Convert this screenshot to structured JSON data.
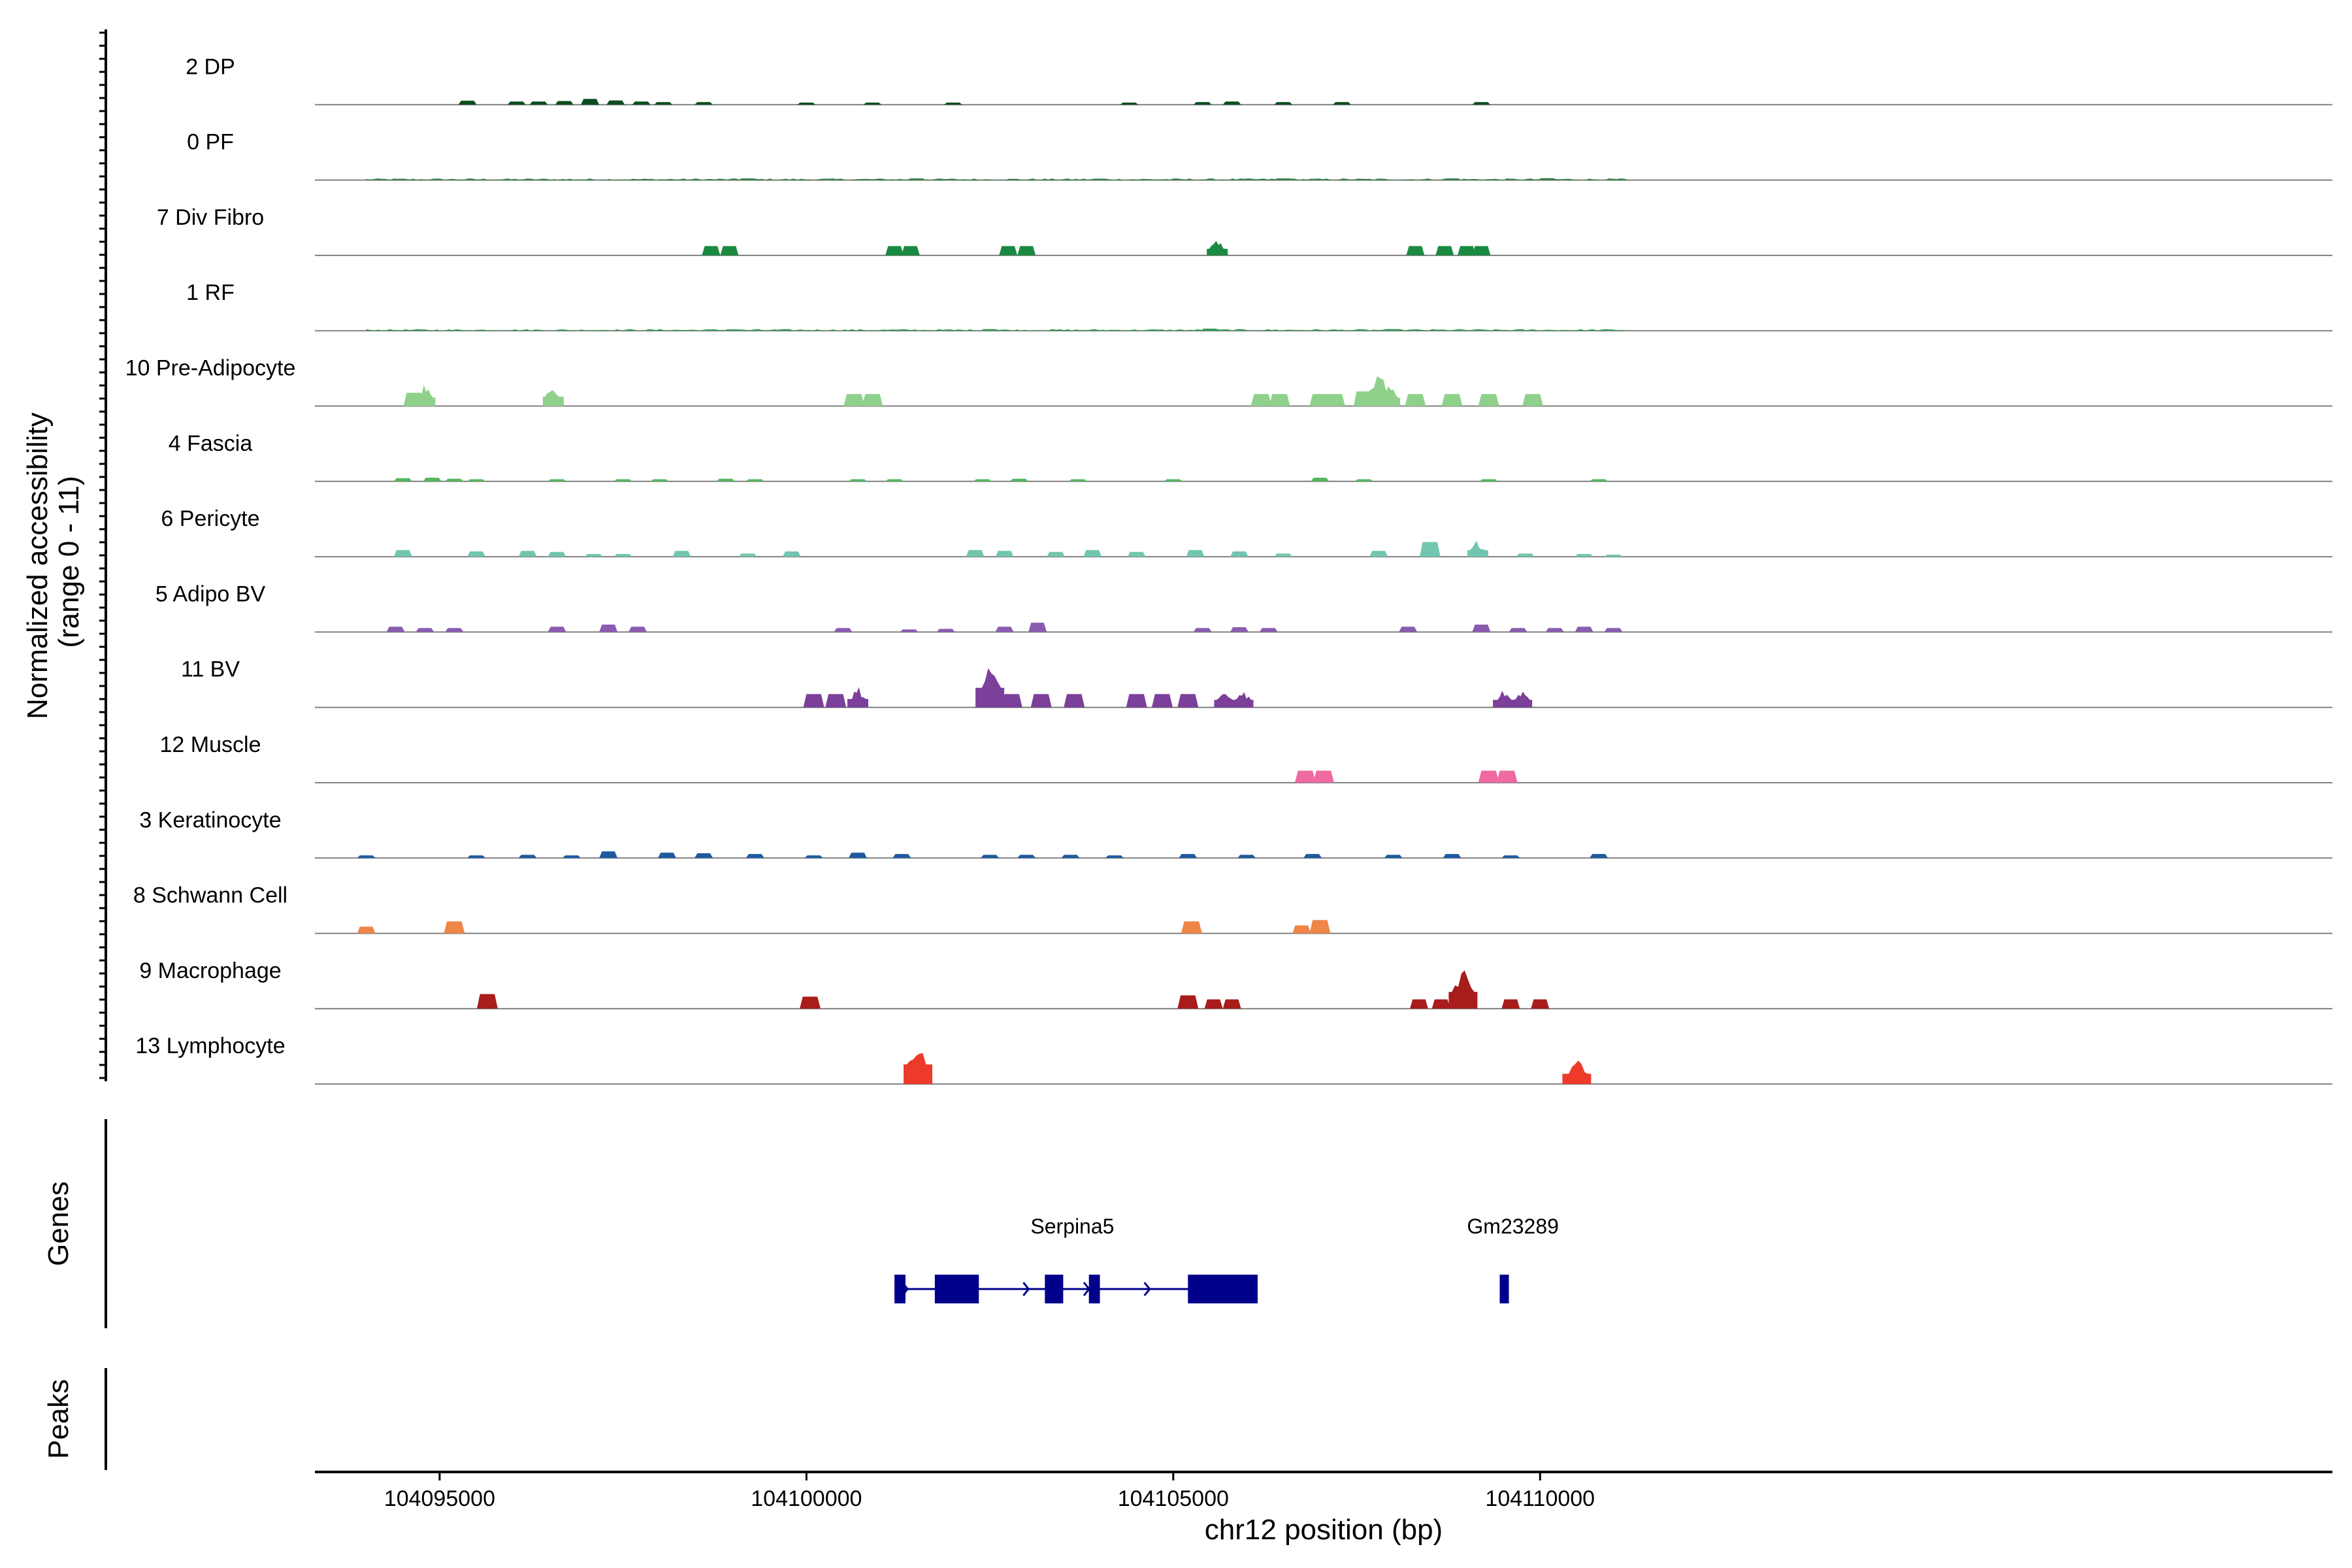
{
  "chart_data": {
    "type": "area",
    "ylabel_line1": "Normalized accessibility",
    "ylabel_line2": "(range 0 - 11)",
    "xlabel": "chr12 position (bp)",
    "xlim": [
      104093300,
      104120800
    ],
    "x_ticks": [
      104095000,
      104100000,
      104105000,
      104110000
    ],
    "x_tick_labels": [
      "104095000",
      "104100000",
      "104105000",
      "104110000"
    ],
    "y_range": [
      0,
      11
    ],
    "tracks": [
      {
        "name": "2 DP",
        "color": "#0b4d1f",
        "peaks": [
          [
            104095380,
            0.15
          ],
          [
            104096050,
            0.12
          ],
          [
            104096350,
            0.12
          ],
          [
            104096700,
            0.14
          ],
          [
            104097050,
            0.22
          ],
          [
            104097400,
            0.16
          ],
          [
            104097750,
            0.12
          ],
          [
            104098050,
            0.1
          ],
          [
            104098600,
            0.1
          ],
          [
            104100000,
            0.08
          ],
          [
            104100900,
            0.08
          ],
          [
            104102000,
            0.08
          ],
          [
            104104400,
            0.08
          ],
          [
            104105400,
            0.1
          ],
          [
            104105800,
            0.12
          ],
          [
            104106500,
            0.1
          ],
          [
            104107300,
            0.1
          ],
          [
            104109200,
            0.1
          ]
        ]
      },
      {
        "name": "0 PF",
        "color": "#2e8040",
        "baseline_noise": 0.06,
        "peaks": [
          [
            104099200,
            0.06
          ],
          [
            104101500,
            0.06
          ],
          [
            104104000,
            0.05
          ],
          [
            104106500,
            0.06
          ],
          [
            104108800,
            0.06
          ],
          [
            104110100,
            0.07
          ]
        ]
      },
      {
        "name": "7 Div Fibro",
        "color": "#1a8a40",
        "peaks": [
          [
            104098700,
            0.35
          ],
          [
            104098950,
            0.35
          ],
          [
            104101200,
            0.35
          ],
          [
            104101420,
            0.35
          ],
          [
            104102750,
            0.35
          ],
          [
            104103000,
            0.35
          ],
          [
            104105600,
            0.7
          ],
          [
            104108300,
            0.35
          ],
          [
            104108700,
            0.35
          ],
          [
            104109000,
            0.35
          ],
          [
            104109200,
            0.35
          ]
        ]
      },
      {
        "name": "1 RF",
        "color": "#3a9a52",
        "baseline_noise": 0.06,
        "peaks": [
          [
            104099000,
            0.05
          ],
          [
            104102500,
            0.06
          ],
          [
            104105500,
            0.08
          ],
          [
            104108000,
            0.06
          ]
        ]
      },
      {
        "name": "10 Pre-Adipocyte",
        "color": "#8fd18b",
        "peaks": [
          [
            104094650,
            0.5
          ],
          [
            104094800,
            0.9
          ],
          [
            104096550,
            1.0
          ],
          [
            104100650,
            0.45
          ],
          [
            104100900,
            0.45
          ],
          [
            104106200,
            0.45
          ],
          [
            104106450,
            0.45
          ],
          [
            104107000,
            0.45
          ],
          [
            104107200,
            0.45
          ],
          [
            104107600,
            0.55
          ],
          [
            104107800,
            1.4
          ],
          [
            104107950,
            0.9
          ],
          [
            104108300,
            0.45
          ],
          [
            104108800,
            0.45
          ],
          [
            104109300,
            0.45
          ],
          [
            104109900,
            0.45
          ]
        ]
      },
      {
        "name": "4 Fascia",
        "color": "#52b85f",
        "peaks": [
          [
            104094500,
            0.12
          ],
          [
            104094900,
            0.14
          ],
          [
            104095200,
            0.1
          ],
          [
            104095500,
            0.08
          ],
          [
            104096600,
            0.08
          ],
          [
            104097500,
            0.08
          ],
          [
            104098000,
            0.08
          ],
          [
            104098900,
            0.1
          ],
          [
            104099300,
            0.08
          ],
          [
            104100700,
            0.08
          ],
          [
            104101200,
            0.08
          ],
          [
            104102400,
            0.08
          ],
          [
            104102900,
            0.1
          ],
          [
            104103700,
            0.08
          ],
          [
            104105000,
            0.08
          ],
          [
            104107000,
            0.14
          ],
          [
            104107600,
            0.08
          ],
          [
            104109300,
            0.08
          ],
          [
            104110800,
            0.08
          ]
        ]
      },
      {
        "name": "6 Pericyte",
        "color": "#72c6b0",
        "peaks": [
          [
            104094500,
            0.25
          ],
          [
            104095500,
            0.2
          ],
          [
            104096200,
            0.22
          ],
          [
            104096600,
            0.18
          ],
          [
            104097100,
            0.1
          ],
          [
            104097500,
            0.1
          ],
          [
            104098300,
            0.22
          ],
          [
            104099200,
            0.12
          ],
          [
            104099800,
            0.2
          ],
          [
            104102300,
            0.25
          ],
          [
            104102700,
            0.22
          ],
          [
            104103400,
            0.18
          ],
          [
            104103900,
            0.25
          ],
          [
            104104500,
            0.18
          ],
          [
            104105300,
            0.25
          ],
          [
            104105900,
            0.2
          ],
          [
            104106500,
            0.12
          ],
          [
            104107800,
            0.22
          ],
          [
            104108500,
            0.55
          ],
          [
            104109150,
            0.7
          ],
          [
            104109800,
            0.12
          ],
          [
            104110600,
            0.1
          ],
          [
            104111000,
            0.08
          ]
        ]
      },
      {
        "name": "5 Adipo BV",
        "color": "#8a5cb0",
        "peaks": [
          [
            104094400,
            0.2
          ],
          [
            104094800,
            0.15
          ],
          [
            104095200,
            0.15
          ],
          [
            104096600,
            0.2
          ],
          [
            104097300,
            0.28
          ],
          [
            104097700,
            0.2
          ],
          [
            104100500,
            0.15
          ],
          [
            104101400,
            0.1
          ],
          [
            104101900,
            0.12
          ],
          [
            104102700,
            0.2
          ],
          [
            104103150,
            0.35
          ],
          [
            104105400,
            0.15
          ],
          [
            104105900,
            0.18
          ],
          [
            104106300,
            0.15
          ],
          [
            104108200,
            0.2
          ],
          [
            104109200,
            0.28
          ],
          [
            104109700,
            0.15
          ],
          [
            104110200,
            0.15
          ],
          [
            104110600,
            0.2
          ],
          [
            104111000,
            0.15
          ]
        ]
      },
      {
        "name": "11 BV",
        "color": "#7c3f9a",
        "peaks": [
          [
            104100100,
            0.5
          ],
          [
            104100400,
            0.5
          ],
          [
            104100700,
            0.9
          ],
          [
            104102500,
            2.1
          ],
          [
            104102800,
            0.5
          ],
          [
            104103200,
            0.5
          ],
          [
            104103650,
            0.5
          ],
          [
            104104500,
            0.5
          ],
          [
            104104850,
            0.5
          ],
          [
            104105200,
            0.5
          ],
          [
            104105700,
            0.8
          ],
          [
            104105950,
            0.8
          ],
          [
            104109500,
            0.8
          ],
          [
            104109750,
            0.8
          ]
        ]
      },
      {
        "name": "12 Muscle",
        "color": "#ee6aa0",
        "peaks": [
          [
            104106800,
            0.45
          ],
          [
            104107050,
            0.45
          ],
          [
            104109300,
            0.45
          ],
          [
            104109550,
            0.45
          ]
        ]
      },
      {
        "name": "3 Keratinocyte",
        "color": "#1f5aa0",
        "peaks": [
          [
            104094000,
            0.1
          ],
          [
            104095500,
            0.1
          ],
          [
            104096200,
            0.12
          ],
          [
            104096800,
            0.1
          ],
          [
            104097300,
            0.25
          ],
          [
            104098100,
            0.2
          ],
          [
            104098600,
            0.18
          ],
          [
            104099300,
            0.15
          ],
          [
            104100100,
            0.1
          ],
          [
            104100700,
            0.2
          ],
          [
            104101300,
            0.15
          ],
          [
            104102500,
            0.12
          ],
          [
            104103000,
            0.12
          ],
          [
            104103600,
            0.12
          ],
          [
            104104200,
            0.1
          ],
          [
            104105200,
            0.15
          ],
          [
            104106000,
            0.12
          ],
          [
            104106900,
            0.15
          ],
          [
            104108000,
            0.12
          ],
          [
            104108800,
            0.15
          ],
          [
            104109600,
            0.1
          ],
          [
            104110800,
            0.15
          ]
        ]
      },
      {
        "name": "8 Schwann Cell",
        "color": "#f08548",
        "peaks": [
          [
            104094000,
            0.25
          ],
          [
            104095200,
            0.45
          ],
          [
            104105250,
            0.45
          ],
          [
            104106750,
            0.3
          ],
          [
            104107000,
            0.5
          ]
        ]
      },
      {
        "name": "9 Macrophage",
        "color": "#a81c1c",
        "peaks": [
          [
            104095650,
            0.55
          ],
          [
            104100050,
            0.45
          ],
          [
            104105200,
            0.5
          ],
          [
            104105550,
            0.35
          ],
          [
            104105800,
            0.35
          ],
          [
            104108350,
            0.35
          ],
          [
            104108650,
            0.35
          ],
          [
            104108950,
            1.8
          ],
          [
            104109600,
            0.35
          ],
          [
            104110000,
            0.35
          ]
        ]
      },
      {
        "name": "13 Lymphocyte",
        "color": "#ee3a2a",
        "peaks": [
          [
            104101520,
            2.1
          ],
          [
            104110500,
            1.1
          ]
        ]
      }
    ],
    "genes_label": "Genes",
    "peaks_label": "Peaks",
    "genes": [
      {
        "name": "Serpina5",
        "start": 104101200,
        "end": 104106150,
        "strand": "+",
        "exons": [
          [
            104101200,
            104101350
          ],
          [
            104101750,
            104102350
          ],
          [
            104103250,
            104103500
          ],
          [
            104103850,
            104104000
          ],
          [
            104105200,
            104106150
          ]
        ]
      },
      {
        "name": "Gm23289",
        "start": 104109450,
        "end": 104109560,
        "strand": "+",
        "exons": [
          [
            104109450,
            104109560
          ]
        ]
      }
    ]
  }
}
